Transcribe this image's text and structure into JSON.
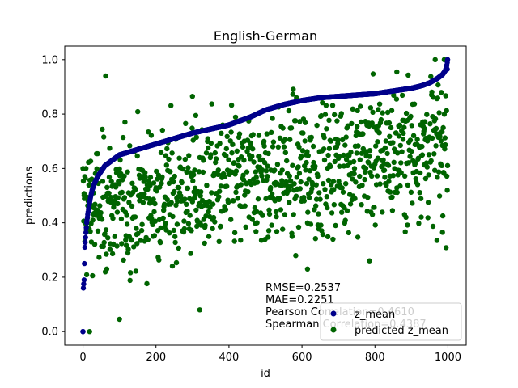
{
  "chart_data": {
    "type": "scatter",
    "title": "English-German",
    "xlabel": "id",
    "ylabel": "predictions",
    "xlim": [
      -50,
      1050
    ],
    "ylim": [
      -0.05,
      1.05
    ],
    "xticks": [
      "0",
      "200",
      "400",
      "600",
      "800",
      "1000"
    ],
    "yticks": [
      "0.0",
      "0.2",
      "0.4",
      "0.6",
      "0.8",
      "1.0"
    ],
    "grid": false,
    "legend_position": "lower-right",
    "series": [
      {
        "name": "z_mean",
        "color": "#00008b",
        "profile": [
          [
            0,
            0.0
          ],
          [
            1,
            0.16
          ],
          [
            3,
            0.19
          ],
          [
            5,
            0.31
          ],
          [
            10,
            0.4
          ],
          [
            15,
            0.45
          ],
          [
            20,
            0.49
          ],
          [
            25,
            0.52
          ],
          [
            30,
            0.54
          ],
          [
            40,
            0.57
          ],
          [
            50,
            0.59
          ],
          [
            60,
            0.61
          ],
          [
            80,
            0.63
          ],
          [
            100,
            0.65
          ],
          [
            150,
            0.67
          ],
          [
            200,
            0.69
          ],
          [
            250,
            0.71
          ],
          [
            300,
            0.73
          ],
          [
            350,
            0.745
          ],
          [
            400,
            0.76
          ],
          [
            430,
            0.775
          ],
          [
            460,
            0.79
          ],
          [
            500,
            0.815
          ],
          [
            550,
            0.835
          ],
          [
            600,
            0.85
          ],
          [
            650,
            0.86
          ],
          [
            700,
            0.865
          ],
          [
            750,
            0.87
          ],
          [
            800,
            0.875
          ],
          [
            850,
            0.885
          ],
          [
            900,
            0.895
          ],
          [
            930,
            0.905
          ],
          [
            950,
            0.915
          ],
          [
            970,
            0.93
          ],
          [
            985,
            0.945
          ],
          [
            993,
            0.96
          ],
          [
            997,
            0.98
          ],
          [
            999,
            1.0
          ]
        ]
      },
      {
        "name": "predicted z_mean",
        "color": "#006400",
        "highlights": [
          [
            62,
            0.94
          ],
          [
            300,
            0.865
          ],
          [
            320,
            0.08
          ],
          [
            100,
            0.045
          ],
          [
            18,
            0.0
          ],
          [
            615,
            0.23
          ],
          [
            785,
            0.26
          ],
          [
            860,
            0.955
          ],
          [
            965,
            1.0
          ],
          [
            990,
            1.0
          ],
          [
            970,
            0.335
          ],
          [
            985,
            0.365
          ],
          [
            5,
            0.57
          ],
          [
            8,
            0.6
          ],
          [
            3,
            0.5
          ]
        ]
      }
    ],
    "annotation": {
      "lines": [
        "RMSE=0.2537",
        "MAE=0.2251",
        "Pearson Correlation=0.4610",
        "Spearman Correlation=0.4387"
      ]
    }
  }
}
